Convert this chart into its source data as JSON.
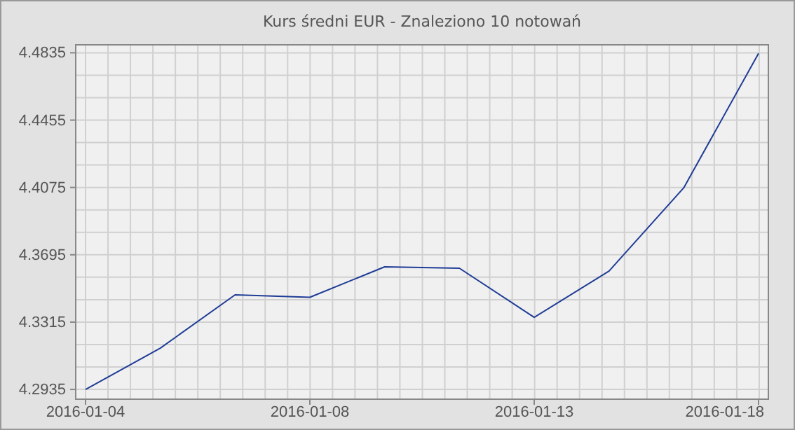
{
  "chart_data": {
    "type": "line",
    "title": "Kurs średni EUR - Znaleziono 10 notowań",
    "categories": [
      "2016-01-04",
      null,
      null,
      "2016-01-08",
      null,
      null,
      "2016-01-13",
      null,
      null,
      "2016-01-18"
    ],
    "series": [
      {
        "color": "#1f3c96",
        "values": [
          4.2935,
          4.3168,
          4.3469,
          4.3455,
          4.3627,
          4.3619,
          4.3342,
          4.3603,
          4.4073,
          4.4832
        ]
      }
    ],
    "ylim": [
      4.288,
      4.488
    ],
    "yticks": [
      4.2935,
      4.3315,
      4.3695,
      4.4075,
      4.4455,
      4.4835
    ],
    "grid": true,
    "marker": "none",
    "line_style": "solid"
  }
}
